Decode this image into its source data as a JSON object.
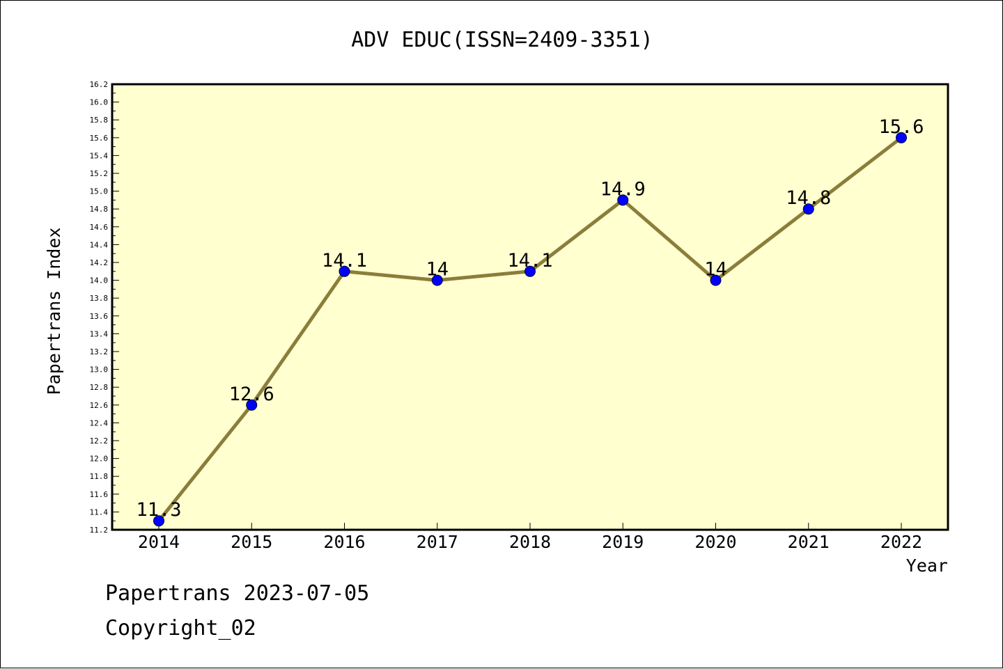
{
  "chart_data": {
    "type": "line",
    "title": "ADV EDUC(ISSN=2409-3351)",
    "xlabel": "Year",
    "ylabel": "Papertrans Index",
    "categories": [
      "2014",
      "2015",
      "2016",
      "2017",
      "2018",
      "2019",
      "2020",
      "2021",
      "2022"
    ],
    "series": [
      {
        "values": [
          11.3,
          12.6,
          14.1,
          14.0,
          14.1,
          14.9,
          14.0,
          14.8,
          15.6
        ],
        "labels": [
          "11.3",
          "12.6",
          "14.1",
          "14",
          "14.1",
          "14.9",
          "14",
          "14.8",
          "15.6"
        ]
      }
    ],
    "ylim": [
      11.2,
      16.2
    ],
    "y_major_step": 0.2,
    "y_minor_step": 0.1,
    "grid": false,
    "colors": {
      "plot_background": "#FFFFD0",
      "line": "#8B7D3A",
      "marker": "#0000FF",
      "axis": "#000000"
    }
  },
  "footer": {
    "line1": "Papertrans 2023-07-05",
    "line2": "Copyright_02"
  }
}
